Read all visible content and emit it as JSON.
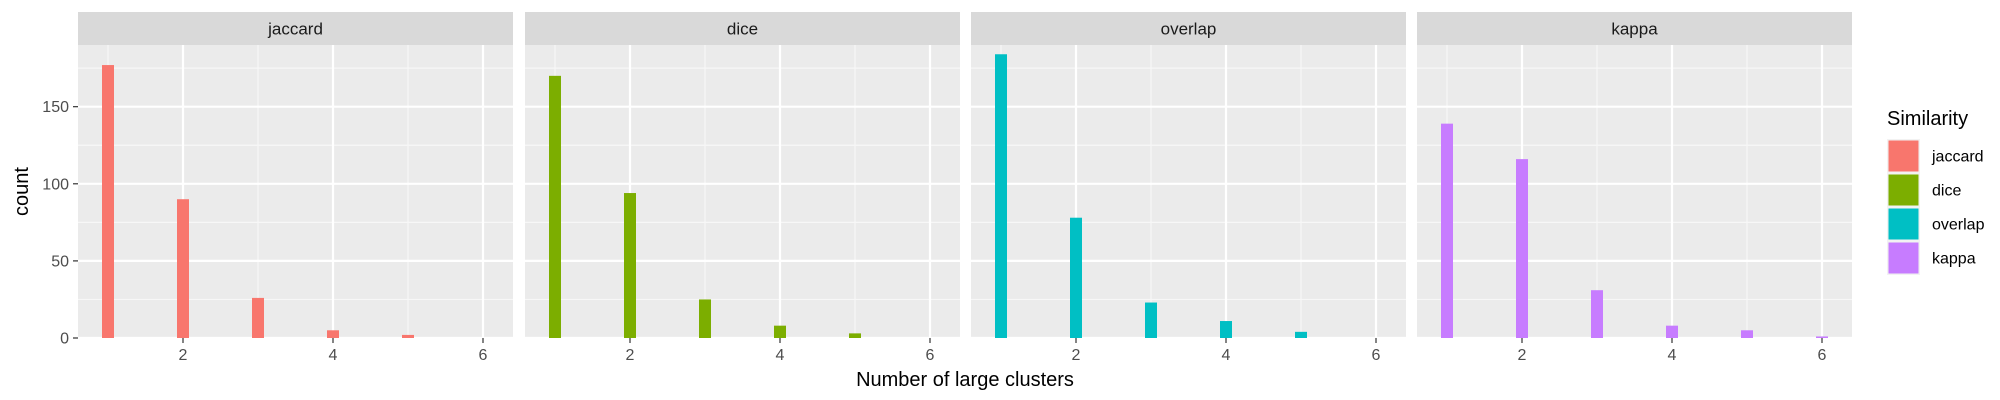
{
  "chart_data": {
    "type": "bar",
    "facet_by": "Similarity",
    "xlabel": "Number of large clusters",
    "ylabel": "count",
    "x_ticks": [
      2,
      4,
      6
    ],
    "y_ticks": [
      0,
      50,
      100,
      150
    ],
    "xlim": [
      0.6,
      6.4
    ],
    "ylim": [
      0,
      190
    ],
    "grid": true,
    "legend": {
      "title": "Similarity",
      "placement": "right",
      "entries": [
        "jaccard",
        "dice",
        "overlap",
        "kappa"
      ]
    },
    "panels": [
      {
        "name": "jaccard",
        "color": "#F8766D",
        "x": [
          1,
          2,
          3,
          4,
          5
        ],
        "values": [
          177,
          90,
          26,
          5,
          2
        ]
      },
      {
        "name": "dice",
        "color": "#7CAE00",
        "x": [
          1,
          2,
          3,
          4,
          5
        ],
        "values": [
          170,
          94,
          25,
          8,
          3
        ]
      },
      {
        "name": "overlap",
        "color": "#00BFC4",
        "x": [
          1,
          2,
          3,
          4,
          5
        ],
        "values": [
          184,
          78,
          23,
          11,
          4
        ]
      },
      {
        "name": "kappa",
        "color": "#C77CFF",
        "x": [
          1,
          2,
          3,
          4,
          5,
          6
        ],
        "values": [
          139,
          116,
          31,
          8,
          5,
          1
        ]
      }
    ]
  }
}
